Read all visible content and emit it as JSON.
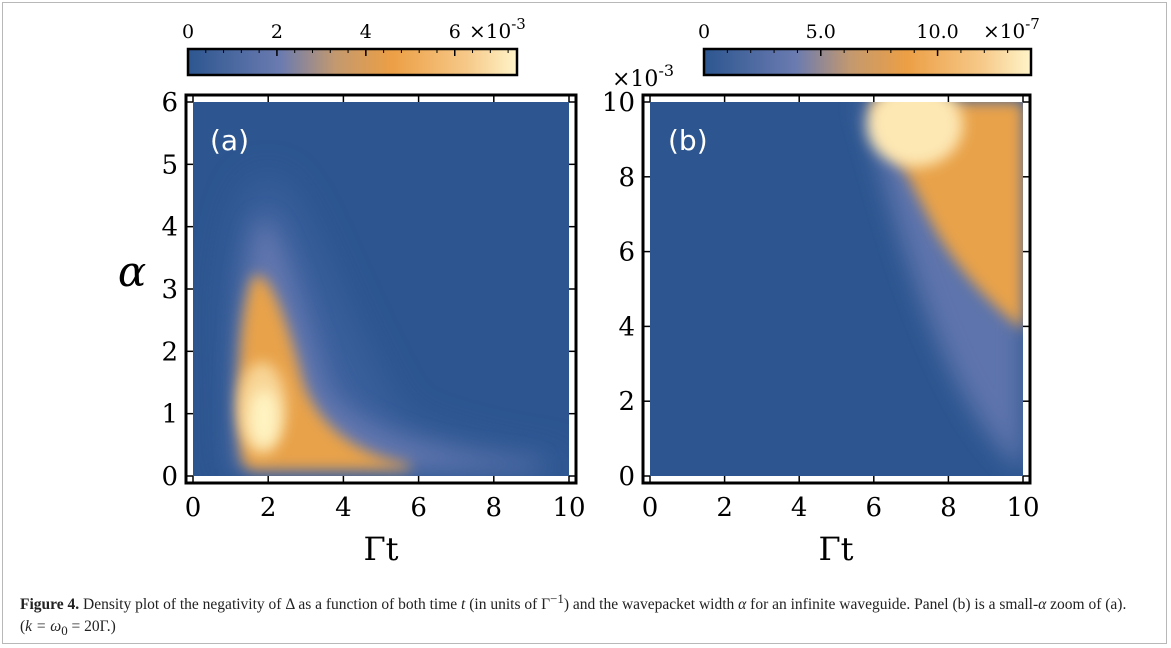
{
  "chart_data": [
    {
      "type": "heatmap",
      "panel_label": "(a)",
      "xlabel": "Γt",
      "ylabel": "α",
      "xlim": [
        0,
        10
      ],
      "ylim": [
        0,
        6
      ],
      "x_ticks": [
        "0",
        "2",
        "4",
        "6",
        "8",
        "10"
      ],
      "y_ticks": [
        "0",
        "1",
        "2",
        "3",
        "4",
        "5",
        "6"
      ],
      "colorbar": {
        "range": [
          0,
          0.0074
        ],
        "tick_labels": [
          "0",
          "2",
          "4",
          "6"
        ],
        "tick_values": [
          0,
          2,
          4,
          6
        ],
        "max_value": 7.4,
        "multiplier": "×10",
        "exponent": "-3"
      },
      "peak": {
        "x": 2.3,
        "y": 1.0,
        "value": 0.0074
      }
    },
    {
      "type": "heatmap",
      "panel_label": "(b)",
      "xlabel": "Γt",
      "ylabel": "",
      "xlim": [
        0,
        10
      ],
      "ylim": [
        0,
        0.01
      ],
      "x_ticks": [
        "0",
        "2",
        "4",
        "6",
        "8",
        "10"
      ],
      "y_ticks": [
        "0",
        "2",
        "4",
        "6",
        "8",
        "10"
      ],
      "y_multiplier": "×10",
      "y_exponent": "-3",
      "colorbar": {
        "range": [
          0,
          1.4e-06
        ],
        "tick_labels": [
          "0",
          "5.0",
          "10.0"
        ],
        "tick_values": [
          0,
          5,
          10
        ],
        "max_value": 14,
        "multiplier": "×10",
        "exponent": "-7"
      },
      "peak": {
        "x": 7.2,
        "y": 0.01,
        "value": 1.4e-06
      }
    }
  ],
  "caption": {
    "label": "Figure 4.",
    "text_1": " Density plot of the negativity of ",
    "delta": "Δ",
    "text_2": " as a function of both time ",
    "t": "t",
    "text_3": " (in units of ",
    "gamma_inv": "Γ",
    "gamma_inv_exp": "−1",
    "text_4": ") and the wavepacket width ",
    "alpha": "α",
    "text_5": " for an infinite waveguide. Panel (b) is a small-",
    "alpha2": "α",
    "text_6": " zoom of (a). (",
    "eq": "k = ω",
    "eq_sub": "0",
    "eq_2": " = 20Γ",
    "text_7": ".)"
  },
  "colors": {
    "low": "#2d5690",
    "mid": "#5e7bb8",
    "high_orange": "#e8a24a",
    "peak": "#fff4c2"
  }
}
